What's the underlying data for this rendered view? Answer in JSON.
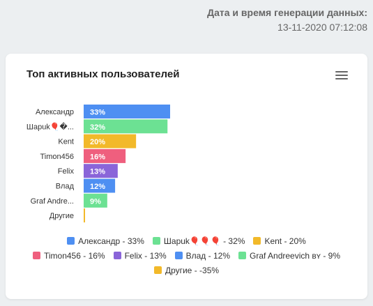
{
  "generation": {
    "label": "Дата и время генерации данных:",
    "datetime": "13-11-2020 07:12:08"
  },
  "card": {
    "title": "Топ активных пользователей",
    "menu_icon": "hamburger-menu-icon"
  },
  "chart_data": {
    "type": "bar",
    "orientation": "horizontal",
    "categories": [
      "Александр",
      "Шарuk🎈�...",
      "Kent",
      "Timon456",
      "Felix",
      "Влад",
      "Graf Andre...",
      "Другие"
    ],
    "values": [
      33,
      32,
      20,
      16,
      13,
      12,
      9,
      -35
    ],
    "value_labels": [
      "33%",
      "32%",
      "20%",
      "16%",
      "13%",
      "12%",
      "9%",
      ""
    ],
    "colors": [
      "#4e8ff2",
      "#6ce193",
      "#f2b92a",
      "#ef5f7e",
      "#8a65d9",
      "#4e8ff2",
      "#6ce193",
      "#f2b92a"
    ],
    "legend": [
      {
        "label": "Александр - 33%",
        "color": "#4e8ff2"
      },
      {
        "label": "Шарuk🎈🎈🎈 - 32%",
        "color": "#6ce193"
      },
      {
        "label": "Kent - 20%",
        "color": "#f2b92a"
      },
      {
        "label": "Timon456 - 16%",
        "color": "#ef5f7e"
      },
      {
        "label": "Felix - 13%",
        "color": "#8a65d9"
      },
      {
        "label": "Влад - 12%",
        "color": "#4e8ff2"
      },
      {
        "label": "Graf Andreevich ʙʏ - 9%",
        "color": "#6ce193"
      },
      {
        "label": "Другие - -35%",
        "color": "#f2b92a"
      }
    ]
  }
}
